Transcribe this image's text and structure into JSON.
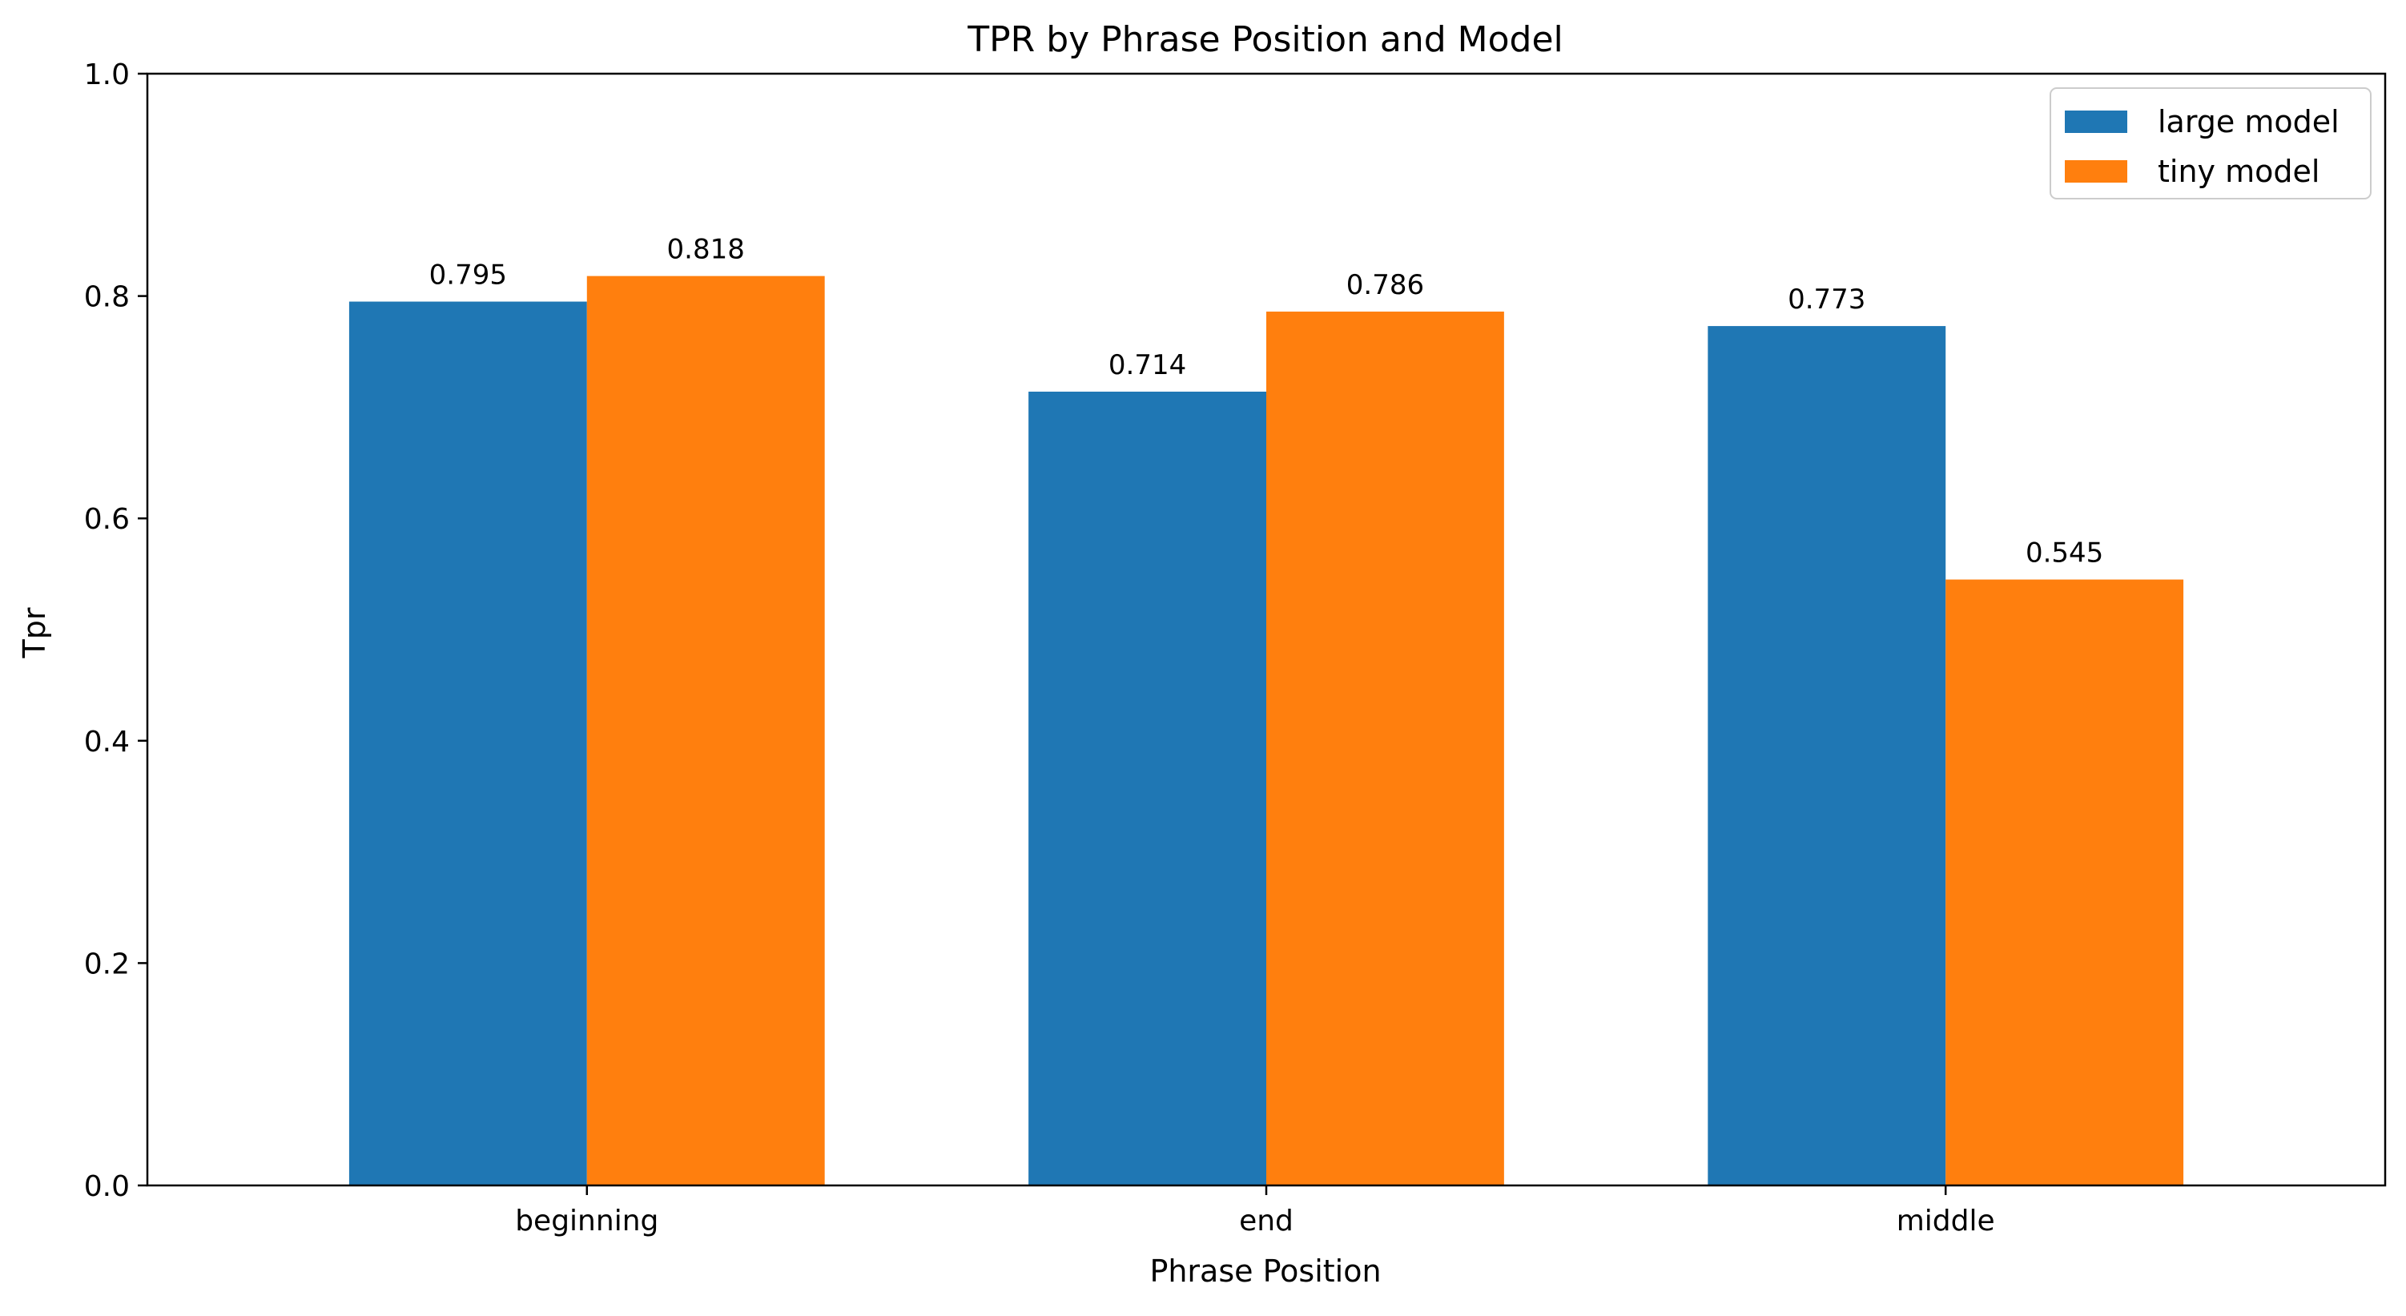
{
  "chart_data": {
    "type": "bar",
    "title": "TPR by Phrase Position and Model",
    "xlabel": "Phrase Position",
    "ylabel": "Tpr",
    "categories": [
      "beginning",
      "end",
      "middle"
    ],
    "series": [
      {
        "name": "large model",
        "color": "#1f77b4",
        "values": [
          0.795,
          0.714,
          0.773
        ],
        "labels": [
          "0.795",
          "0.714",
          "0.773"
        ]
      },
      {
        "name": "tiny model",
        "color": "#ff7f0e",
        "values": [
          0.818,
          0.786,
          0.545
        ],
        "labels": [
          "0.818",
          "0.786",
          "0.545"
        ]
      }
    ],
    "ylim": [
      0,
      1.0
    ],
    "yticks": [
      0.0,
      0.2,
      0.4,
      0.6,
      0.8,
      1.0
    ],
    "ytick_labels": [
      "0.0",
      "0.2",
      "0.4",
      "0.6",
      "0.8",
      "1.0"
    ],
    "grid": false,
    "legend_position": "top-right"
  }
}
